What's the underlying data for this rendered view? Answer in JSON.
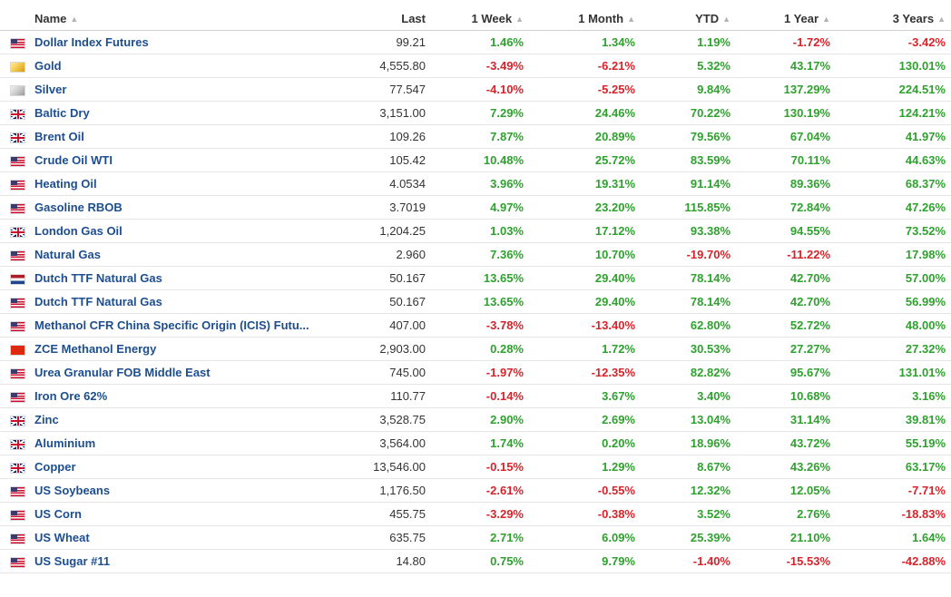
{
  "header": {
    "name": "Name",
    "last": "Last",
    "week1": "1 Week",
    "month1": "1 Month",
    "ytd": "YTD",
    "year1": "1 Year",
    "years3": "3 Years",
    "sort_icon": "sort-icon"
  },
  "colors": {
    "positive": "#2ea12e",
    "negative": "#d8232a",
    "link": "#1d4e8f"
  },
  "rows": [
    {
      "flag": "us-flag-icon",
      "name": "Dollar Index Futures",
      "last": "99.21",
      "w1": "1.46%",
      "m1": "1.34%",
      "ytd": "1.19%",
      "y1": "-1.72%",
      "y3": "-3.42%"
    },
    {
      "flag": "gold-icon",
      "name": "Gold",
      "last": "4,555.80",
      "w1": "-3.49%",
      "m1": "-6.21%",
      "ytd": "5.32%",
      "y1": "43.17%",
      "y3": "130.01%"
    },
    {
      "flag": "silver-icon",
      "name": "Silver",
      "last": "77.547",
      "w1": "-4.10%",
      "m1": "-5.25%",
      "ytd": "9.84%",
      "y1": "137.29%",
      "y3": "224.51%"
    },
    {
      "flag": "uk-flag-icon",
      "name": "Baltic Dry",
      "last": "3,151.00",
      "w1": "7.29%",
      "m1": "24.46%",
      "ytd": "70.22%",
      "y1": "130.19%",
      "y3": "124.21%"
    },
    {
      "flag": "uk-flag-icon",
      "name": "Brent Oil",
      "last": "109.26",
      "w1": "7.87%",
      "m1": "20.89%",
      "ytd": "79.56%",
      "y1": "67.04%",
      "y3": "41.97%"
    },
    {
      "flag": "us-flag-icon",
      "name": "Crude Oil WTI",
      "last": "105.42",
      "w1": "10.48%",
      "m1": "25.72%",
      "ytd": "83.59%",
      "y1": "70.11%",
      "y3": "44.63%"
    },
    {
      "flag": "us-flag-icon",
      "name": "Heating Oil",
      "last": "4.0534",
      "w1": "3.96%",
      "m1": "19.31%",
      "ytd": "91.14%",
      "y1": "89.36%",
      "y3": "68.37%"
    },
    {
      "flag": "us-flag-icon",
      "name": "Gasoline RBOB",
      "last": "3.7019",
      "w1": "4.97%",
      "m1": "23.20%",
      "ytd": "115.85%",
      "y1": "72.84%",
      "y3": "47.26%"
    },
    {
      "flag": "uk-flag-icon",
      "name": "London Gas Oil",
      "last": "1,204.25",
      "w1": "1.03%",
      "m1": "17.12%",
      "ytd": "93.38%",
      "y1": "94.55%",
      "y3": "73.52%"
    },
    {
      "flag": "us-flag-icon",
      "name": "Natural Gas",
      "last": "2.960",
      "w1": "7.36%",
      "m1": "10.70%",
      "ytd": "-19.70%",
      "y1": "-11.22%",
      "y3": "17.98%"
    },
    {
      "flag": "nl-flag-icon",
      "name": "Dutch TTF Natural Gas",
      "last": "50.167",
      "w1": "13.65%",
      "m1": "29.40%",
      "ytd": "78.14%",
      "y1": "42.70%",
      "y3": "57.00%"
    },
    {
      "flag": "us-flag-icon",
      "name": "Dutch TTF Natural Gas",
      "last": "50.167",
      "w1": "13.65%",
      "m1": "29.40%",
      "ytd": "78.14%",
      "y1": "42.70%",
      "y3": "56.99%"
    },
    {
      "flag": "us-flag-icon",
      "name": "Methanol CFR China Specific Origin (ICIS) Futu...",
      "last": "407.00",
      "w1": "-3.78%",
      "m1": "-13.40%",
      "ytd": "62.80%",
      "y1": "52.72%",
      "y3": "48.00%"
    },
    {
      "flag": "cn-flag-icon",
      "name": "ZCE Methanol Energy",
      "last": "2,903.00",
      "w1": "0.28%",
      "m1": "1.72%",
      "ytd": "30.53%",
      "y1": "27.27%",
      "y3": "27.32%"
    },
    {
      "flag": "us-flag-icon",
      "name": "Urea Granular FOB Middle East",
      "last": "745.00",
      "w1": "-1.97%",
      "m1": "-12.35%",
      "ytd": "82.82%",
      "y1": "95.67%",
      "y3": "131.01%"
    },
    {
      "flag": "us-flag-icon",
      "name": "Iron Ore 62%",
      "last": "110.77",
      "w1": "-0.14%",
      "m1": "3.67%",
      "ytd": "3.40%",
      "y1": "10.68%",
      "y3": "3.16%"
    },
    {
      "flag": "uk-flag-icon",
      "name": "Zinc",
      "last": "3,528.75",
      "w1": "2.90%",
      "m1": "2.69%",
      "ytd": "13.04%",
      "y1": "31.14%",
      "y3": "39.81%"
    },
    {
      "flag": "uk-flag-icon",
      "name": "Aluminium",
      "last": "3,564.00",
      "w1": "1.74%",
      "m1": "0.20%",
      "ytd": "18.96%",
      "y1": "43.72%",
      "y3": "55.19%"
    },
    {
      "flag": "uk-flag-icon",
      "name": "Copper",
      "last": "13,546.00",
      "w1": "-0.15%",
      "m1": "1.29%",
      "ytd": "8.67%",
      "y1": "43.26%",
      "y3": "63.17%"
    },
    {
      "flag": "us-flag-icon",
      "name": "US Soybeans",
      "last": "1,176.50",
      "w1": "-2.61%",
      "m1": "-0.55%",
      "ytd": "12.32%",
      "y1": "12.05%",
      "y3": "-7.71%"
    },
    {
      "flag": "us-flag-icon",
      "name": "US Corn",
      "last": "455.75",
      "w1": "-3.29%",
      "m1": "-0.38%",
      "ytd": "3.52%",
      "y1": "2.76%",
      "y3": "-18.83%"
    },
    {
      "flag": "us-flag-icon",
      "name": "US Wheat",
      "last": "635.75",
      "w1": "2.71%",
      "m1": "6.09%",
      "ytd": "25.39%",
      "y1": "21.10%",
      "y3": "1.64%"
    },
    {
      "flag": "us-flag-icon",
      "name": "US Sugar #11",
      "last": "14.80",
      "w1": "0.75%",
      "m1": "9.79%",
      "ytd": "-1.40%",
      "y1": "-15.53%",
      "y3": "-42.88%"
    }
  ]
}
